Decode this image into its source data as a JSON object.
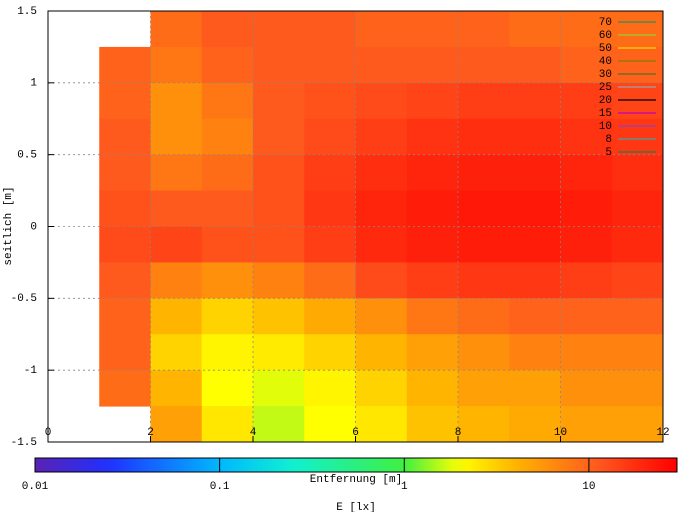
{
  "chart_data": {
    "type": "heatmap",
    "xlabel": "Entfernung [m]",
    "ylabel": "seitlich [m]",
    "x": [
      0.5,
      1.5,
      2.5,
      3.5,
      4.5,
      5.5,
      6.5,
      7.5,
      8.5,
      9.5,
      10.5,
      11.5
    ],
    "y": [
      1.375,
      1.125,
      0.875,
      0.625,
      0.375,
      0.125,
      -0.125,
      -0.375,
      -0.625,
      -0.875,
      -1.125,
      -1.375
    ],
    "z": [
      [
        null,
        null,
        9,
        11,
        11,
        11,
        10,
        10,
        10,
        9,
        9,
        9
      ],
      [
        null,
        10,
        8,
        10,
        11,
        11,
        11,
        11,
        11,
        11,
        10,
        10
      ],
      [
        null,
        10,
        6,
        8,
        11,
        12,
        13,
        14,
        15,
        15,
        15,
        14
      ],
      [
        null,
        11,
        6,
        7,
        11,
        13,
        15,
        17,
        18,
        18,
        17,
        16
      ],
      [
        null,
        11,
        8,
        9,
        12,
        15,
        18,
        20,
        21,
        21,
        20,
        18
      ],
      [
        null,
        12,
        11,
        11,
        12,
        16,
        20,
        22,
        23,
        23,
        22,
        20
      ],
      [
        null,
        13,
        14,
        12,
        12,
        15,
        19,
        21,
        22,
        22,
        21,
        19
      ],
      [
        null,
        11,
        7,
        6,
        7,
        9,
        13,
        15,
        16,
        16,
        15,
        14
      ],
      [
        null,
        10,
        4,
        3,
        3.5,
        4.5,
        6,
        8,
        9,
        10,
        10,
        10
      ],
      [
        null,
        10,
        3,
        2.2,
        2.4,
        3,
        4,
        5,
        6,
        7,
        7,
        7
      ],
      [
        null,
        9,
        4,
        2,
        1.8,
        2.2,
        3,
        4,
        5,
        5,
        6,
        6
      ],
      [
        null,
        null,
        5,
        2.5,
        1.6,
        2,
        2.5,
        3.5,
        4,
        4.5,
        5,
        5
      ]
    ],
    "xlim": [
      0,
      12
    ],
    "ylim": [
      -1.5,
      1.5
    ],
    "xticks": [
      0,
      2,
      4,
      6,
      8,
      10,
      12
    ],
    "yticks": [
      -1.5,
      -1,
      -0.5,
      0,
      0.5,
      1,
      1.5
    ],
    "grid": true,
    "contours": [
      {
        "level": 70,
        "color": "#2e8b57"
      },
      {
        "level": 60,
        "color": "#9acd32"
      },
      {
        "level": 50,
        "color": "#ffd700"
      },
      {
        "level": 40,
        "color": "#808000"
      },
      {
        "level": 30,
        "color": "#556b2f"
      },
      {
        "level": 25,
        "color": "#a0a0a0"
      },
      {
        "level": 20,
        "color": "#000000"
      },
      {
        "level": 15,
        "color": "#c000c0"
      },
      {
        "level": 10,
        "color": "#9040c0"
      },
      {
        "level": 8,
        "color": "#40a0a0"
      },
      {
        "level": 5,
        "color": "#208050"
      }
    ],
    "colorbar": {
      "label": "E [lx]",
      "log": true,
      "lim": [
        0.01,
        30
      ],
      "ticks": [
        0.01,
        0.1,
        1,
        10
      ],
      "palette": [
        {
          "value": 0.01,
          "color": "#5a22b4"
        },
        {
          "value": 0.025,
          "color": "#2030ff"
        },
        {
          "value": 0.1,
          "color": "#00b8ff"
        },
        {
          "value": 0.25,
          "color": "#10f0d0"
        },
        {
          "value": 1,
          "color": "#40f040"
        },
        {
          "value": 2,
          "color": "#ffff00"
        },
        {
          "value": 4,
          "color": "#ffb400"
        },
        {
          "value": 11,
          "color": "#ff5a1e"
        },
        {
          "value": 30,
          "color": "#ff0000"
        }
      ]
    }
  }
}
